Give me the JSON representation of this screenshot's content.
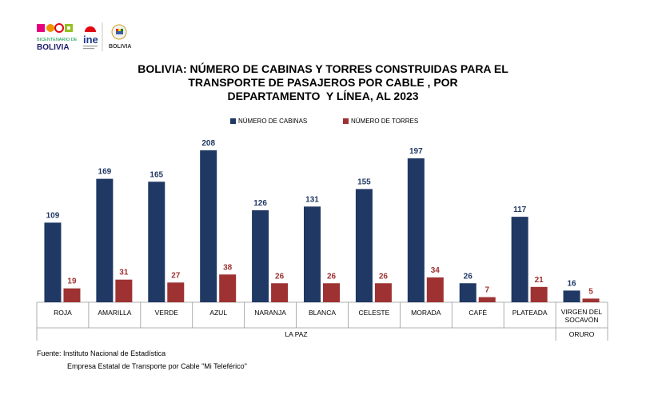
{
  "header": {
    "logo1_lines": [
      "BICENTENARIO DE",
      "BOLIVIA"
    ],
    "logo2_text": "ine",
    "logo3_text": "BOLIVIA"
  },
  "title_lines": [
    "BOLIVIA: NÚMERO DE CABINAS Y TORRES CONSTRUIDAS PARA EL",
    "TRANSPORTE DE PASAJEROS POR CABLE , POR",
    "DEPARTAMENTO  Y LÍNEA, AL 2023"
  ],
  "colors": {
    "cabinas": "#1f3864",
    "torres": "#9e3232",
    "cabinas_label": "#1f3864",
    "torres_label": "#9e3232"
  },
  "chart_data": {
    "type": "bar",
    "title": "BOLIVIA: NÚMERO DE CABINAS Y TORRES CONSTRUIDAS PARA EL TRANSPORTE DE PASAJEROS POR CABLE , POR DEPARTAMENTO  Y LÍNEA, AL 2023",
    "categories": [
      "ROJA",
      "AMARILLA",
      "VERDE",
      "AZUL",
      "NARANJA",
      "BLANCA",
      "CELESTE",
      "MORADA",
      "CAFÉ",
      "PLATEADA",
      "VIRGEN DEL SOCAVÓN"
    ],
    "groups": [
      {
        "label": "LA PAZ",
        "count": 10
      },
      {
        "label": "ORURO",
        "count": 1
      }
    ],
    "series": [
      {
        "name": "NÚMERO DE CABINAS",
        "values": [
          109,
          169,
          165,
          208,
          126,
          131,
          155,
          197,
          26,
          117,
          16
        ]
      },
      {
        "name": "NÚMERO DE TORRES",
        "values": [
          19,
          31,
          27,
          38,
          26,
          26,
          26,
          34,
          7,
          21,
          5
        ]
      }
    ],
    "ylim": [
      0,
      208
    ],
    "legend": "top-center",
    "grid": false
  },
  "source": {
    "line1": "Fuente: Instituto Nacional de Estadística",
    "line2": "Empresa Estatal de Transporte por Cable \"Mi Teleférico\""
  }
}
